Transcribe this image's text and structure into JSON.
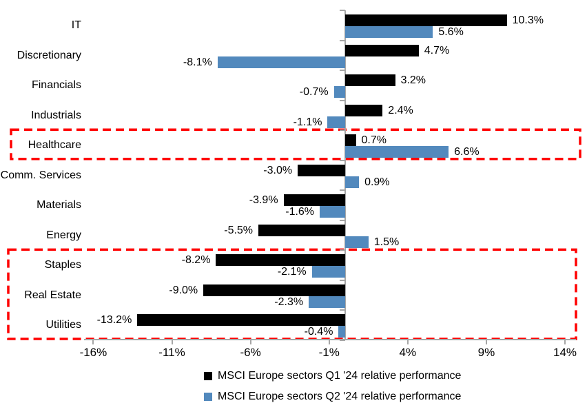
{
  "chart_data": {
    "type": "bar",
    "orientation": "horizontal",
    "title": "",
    "categories": [
      "IT",
      "Discretionary",
      "Financials",
      "Industrials",
      "Healthcare",
      "Comm. Services",
      "Materials",
      "Energy",
      "Staples",
      "Real Estate",
      "Utilities"
    ],
    "series": [
      {
        "key": "q1",
        "name": "MSCI Europe sectors Q1 '24 relative performance",
        "color": "#000000",
        "values": [
          10.3,
          4.7,
          3.2,
          2.4,
          0.7,
          -3.0,
          -3.9,
          -5.5,
          -8.2,
          -9.0,
          -13.2
        ],
        "labels": [
          "10.3%",
          "4.7%",
          "3.2%",
          "2.4%",
          "0.7%",
          "-3.0%",
          "-3.9%",
          "-5.5%",
          "-8.2%",
          "-9.0%",
          "-13.2%"
        ]
      },
      {
        "key": "q2",
        "name": "MSCI Europe sectors Q2 '24 relative performance",
        "color": "#5289BD",
        "values": [
          5.6,
          -8.1,
          -0.7,
          -1.1,
          6.6,
          0.9,
          -1.6,
          1.5,
          -2.1,
          -2.3,
          -0.4
        ],
        "labels": [
          "5.6%",
          "-8.1%",
          "-0.7%",
          "-1.1%",
          "6.6%",
          "0.9%",
          "-1.6%",
          "1.5%",
          "-2.1%",
          "-2.3%",
          "-0.4%"
        ]
      }
    ],
    "x_axis": {
      "min": -16.5,
      "max": 14.7,
      "tick_values": [
        -16,
        -11,
        -6,
        -1,
        4,
        9,
        14
      ],
      "tick_labels": [
        "-16%",
        "-11%",
        "-6%",
        "-1%",
        "4%",
        "9%",
        "14%"
      ]
    },
    "grid": "off",
    "legend_position": "bottom",
    "data_label_position": "outside-end",
    "axis_color": "#A6A6A6",
    "highlight_boxes": [
      {
        "id": "healthcare-box",
        "from_category": "Healthcare",
        "to_category": "Healthcare",
        "color": "#FF0000",
        "style": "dashed"
      },
      {
        "id": "defensives-box",
        "from_category": "Staples",
        "to_category": "Utilities",
        "color": "#FF0000",
        "style": "dashed"
      }
    ]
  }
}
